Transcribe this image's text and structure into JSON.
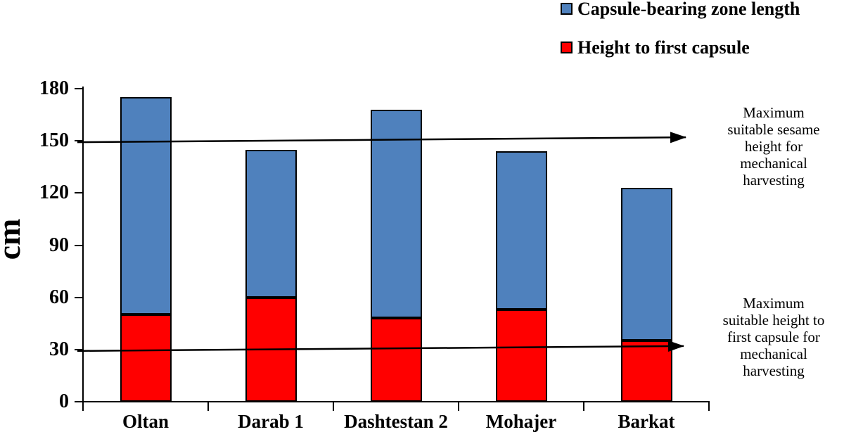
{
  "chart_data": {
    "type": "bar",
    "stacked": true,
    "title": "",
    "xlabel": "",
    "ylabel": "cm",
    "ylim": [
      0,
      180
    ],
    "yticks": [
      0,
      30,
      60,
      90,
      120,
      150,
      180
    ],
    "grid": false,
    "legend_position": "top-right",
    "categories": [
      "Oltan",
      "Darab 1",
      "Dashtestan 2",
      "Mohajer",
      "Barkat"
    ],
    "series": [
      {
        "name": "Height to first capsule",
        "color": "#ff0000",
        "values": [
          50,
          60,
          48,
          53,
          35
        ]
      },
      {
        "name": "Capsule-bearing zone length",
        "color": "#4f81bd",
        "values": [
          125,
          85,
          120,
          91,
          88
        ]
      }
    ],
    "stack_totals": [
      175,
      145,
      168,
      144,
      123
    ],
    "reference_lines": [
      {
        "value": 150,
        "style": "black horizontal arrow pointing right",
        "label": "Maximum suitable sesame height for mechanical harvesting"
      },
      {
        "value": 30,
        "style": "black horizontal arrow pointing right",
        "label": "Maximum suitable height to first capsule for mechanical harvesting"
      }
    ]
  },
  "legend": {
    "items": [
      {
        "label": "Capsule-bearing zone length",
        "color": "#4f81bd"
      },
      {
        "label": "Height to first capsule",
        "color": "#ff0000"
      }
    ]
  },
  "annotations": {
    "upper": "Maximum\nsuitable sesame\nheight for\nmechanical\nharvesting",
    "lower": "Maximum\nsuitable height to\nfirst capsule  for\nmechanical\nharvesting"
  },
  "colors": {
    "bar_blue": "#4f81bd",
    "bar_red": "#ff0000",
    "axis": "#000000",
    "background": "#ffffff"
  }
}
